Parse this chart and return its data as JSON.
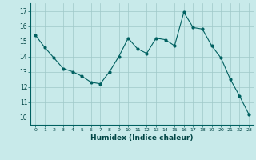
{
  "x": [
    0,
    1,
    2,
    3,
    4,
    5,
    6,
    7,
    8,
    9,
    10,
    11,
    12,
    13,
    14,
    15,
    16,
    17,
    18,
    19,
    20,
    21,
    22,
    23
  ],
  "y": [
    15.4,
    14.6,
    13.9,
    13.2,
    13.0,
    12.7,
    12.3,
    12.2,
    13.0,
    14.0,
    15.2,
    14.5,
    14.2,
    15.2,
    15.1,
    14.7,
    16.9,
    15.9,
    15.8,
    14.7,
    13.9,
    12.5,
    11.4,
    10.2
  ],
  "xlabel": "Humidex (Indice chaleur)",
  "xlim": [
    -0.5,
    23.5
  ],
  "ylim": [
    9.5,
    17.5
  ],
  "yticks": [
    10,
    11,
    12,
    13,
    14,
    15,
    16,
    17
  ],
  "xticks": [
    0,
    1,
    2,
    3,
    4,
    5,
    6,
    7,
    8,
    9,
    10,
    11,
    12,
    13,
    14,
    15,
    16,
    17,
    18,
    19,
    20,
    21,
    22,
    23
  ],
  "line_color": "#006060",
  "marker_color": "#006060",
  "bg_color": "#c8eaea",
  "grid_color": "#9fc8c8"
}
